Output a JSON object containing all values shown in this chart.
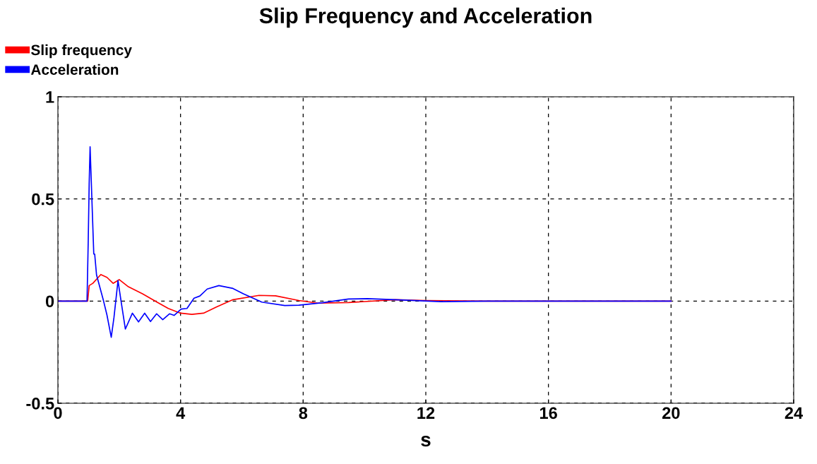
{
  "chart_data": {
    "type": "line",
    "title": "Slip Frequency and Acceleration",
    "xlabel": "s",
    "xlim": [
      0,
      24
    ],
    "xticks": [
      0,
      4,
      8,
      12,
      16,
      20,
      24
    ],
    "ylim": [
      -0.5,
      1
    ],
    "yticks": [
      -0.5,
      0,
      0.5,
      1
    ],
    "grid": true,
    "legend": "top left",
    "line_style": "solid",
    "marker": "none",
    "series": [
      {
        "name": "Slip frequency",
        "color": "#ff0000",
        "x": [
          0,
          0.97,
          1.02,
          1.14,
          1.4,
          1.6,
          1.8,
          2.0,
          2.3,
          2.76,
          3.23,
          3.6,
          4.0,
          4.37,
          4.75,
          5.18,
          5.71,
          6.56,
          7.1,
          7.86,
          8.48,
          9.48,
          11.0,
          12.0,
          14.0,
          20.0
        ],
        "values": [
          0,
          0,
          0.076,
          0.087,
          0.13,
          0.116,
          0.087,
          0.105,
          0.07,
          0.036,
          -0.005,
          -0.036,
          -0.059,
          -0.065,
          -0.059,
          -0.028,
          0.007,
          0.028,
          0.026,
          0.003,
          -0.01,
          -0.007,
          0.007,
          0.003,
          0,
          0
        ]
      },
      {
        "name": "Acceleration",
        "color": "#0000ff",
        "x": [
          0,
          0.95,
          0.99,
          1.02,
          1.05,
          1.17,
          1.2,
          1.26,
          1.49,
          1.6,
          1.74,
          1.83,
          1.96,
          2.06,
          2.2,
          2.43,
          2.63,
          2.83,
          3.02,
          3.22,
          3.42,
          3.64,
          3.79,
          4.02,
          4.21,
          4.44,
          4.63,
          4.87,
          5.25,
          5.71,
          6.05,
          6.65,
          7.4,
          7.86,
          8.63,
          9.48,
          10.1,
          11.0,
          12.5,
          14.0,
          20.0
        ],
        "values": [
          0,
          0,
          0.3,
          0.575,
          0.755,
          0.23,
          0.23,
          0.128,
          0,
          -0.068,
          -0.177,
          -0.079,
          0.1,
          0,
          -0.137,
          -0.059,
          -0.102,
          -0.059,
          -0.1,
          -0.062,
          -0.091,
          -0.062,
          -0.07,
          -0.039,
          -0.036,
          0.014,
          0.025,
          0.059,
          0.076,
          0.062,
          0.036,
          -0.005,
          -0.022,
          -0.02,
          -0.008,
          0.01,
          0.012,
          0.007,
          -0.003,
          0,
          0
        ]
      }
    ]
  }
}
